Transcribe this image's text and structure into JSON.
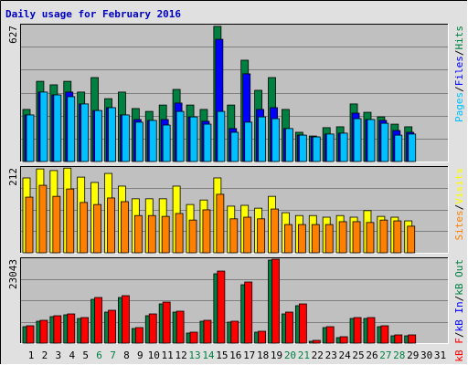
{
  "chart_data": {
    "type": "bar",
    "title": "Daily usage for February 2016",
    "categories": [
      "1",
      "2",
      "3",
      "4",
      "5",
      "6",
      "7",
      "8",
      "9",
      "10",
      "11",
      "12",
      "13",
      "14",
      "15",
      "16",
      "17",
      "18",
      "19",
      "20",
      "21",
      "22",
      "23",
      "24",
      "25",
      "26",
      "27",
      "28",
      "29",
      "30",
      "31"
    ],
    "category_colors": [
      "#000000",
      "#000000",
      "#000000",
      "#000000",
      "#000000",
      "#008040",
      "#008040",
      "#000000",
      "#000000",
      "#000000",
      "#000000",
      "#000000",
      "#008040",
      "#008040",
      "#000000",
      "#000000",
      "#000000",
      "#000000",
      "#000000",
      "#008040",
      "#008040",
      "#000000",
      "#000000",
      "#000000",
      "#000000",
      "#000000",
      "#008040",
      "#008040",
      "#000000",
      "#000000",
      "#000000"
    ],
    "legend_separator": "/",
    "panels": [
      {
        "ylim": [
          0,
          627
        ],
        "yticks": [
          627
        ],
        "series": [
          {
            "name": "Pages",
            "color": "#00c0ff",
            "values": [
              212,
              316,
              303,
              295,
              262,
              232,
              245,
              212,
              179,
              187,
              166,
              228,
              203,
              170,
              228,
              133,
              179,
              203,
              195,
              150,
              120,
              112,
              125,
              129,
              195,
              191,
              174,
              120,
              125,
              null,
              null
            ]
          },
          {
            "name": "Files",
            "color": "#0000ff",
            "values": [
              212,
              316,
              303,
              316,
              262,
              232,
              245,
              212,
              191,
              187,
              191,
              266,
              203,
              183,
              556,
              150,
              399,
              237,
              245,
              150,
              120,
              112,
              125,
              129,
              220,
              191,
              187,
              141,
              133,
              null,
              null
            ]
          },
          {
            "name": "Hits",
            "color": "#008040",
            "values": [
              237,
              365,
              349,
              365,
              316,
              382,
              286,
              316,
              241,
              228,
              257,
              328,
              257,
              237,
              615,
              257,
              461,
              324,
              382,
              237,
              133,
              116,
              154,
              158,
              262,
              224,
              203,
              170,
              158,
              null,
              null
            ]
          }
        ]
      },
      {
        "ylim": [
          0,
          212
        ],
        "yticks": [
          212
        ],
        "series": [
          {
            "name": "Sites",
            "color": "#ff8000",
            "values": [
              136,
              165,
              138,
              156,
              123,
              118,
              134,
              125,
              91,
              91,
              89,
              96,
              80,
              105,
              143,
              83,
              87,
              83,
              107,
              69,
              69,
              69,
              69,
              76,
              76,
              74,
              80,
              78,
              65,
              null,
              null
            ]
          },
          {
            "name": "Visits",
            "color": "#ffff00",
            "values": [
              183,
              205,
              201,
              207,
              185,
              172,
              194,
              163,
              132,
              132,
              132,
              163,
              118,
              129,
              183,
              114,
              116,
              109,
              138,
              98,
              91,
              91,
              87,
              91,
              87,
              103,
              89,
              87,
              78,
              null,
              null
            ]
          }
        ]
      },
      {
        "ylim": [
          0,
          23043
        ],
        "yticks": [
          23043
        ],
        "series": [
          {
            "name": "kB F",
            "color": "#ff0000",
            "values": [
              4655,
              6125,
              7350,
              7840,
              6860,
              12250,
              8820,
              12740,
              4165,
              7840,
              11025,
              8575,
              2940,
              6125,
              19355,
              5880,
              16415,
              3185,
              22540,
              8330,
              10535,
              735,
              4410,
              1715,
              6860,
              6860,
              4655,
              2205,
              2205,
              null,
              null
            ]
          },
          {
            "name": "kB In",
            "color": "#0000ff",
            "values": [
              0,
              0,
              0,
              0,
              0,
              0,
              0,
              0,
              0,
              0,
              0,
              0,
              0,
              0,
              0,
              0,
              0,
              0,
              0,
              0,
              0,
              0,
              0,
              0,
              0,
              0,
              0,
              0,
              0,
              null,
              null
            ]
          },
          {
            "name": "kB Out",
            "color": "#008040",
            "values": [
              4410,
              5880,
              7105,
              7595,
              6615,
              11760,
              8330,
              12250,
              3920,
              7350,
              10535,
              8330,
              2695,
              5880,
              18620,
              5635,
              15680,
              2940,
              22295,
              7840,
              10045,
              490,
              4165,
              1470,
              6615,
              6615,
              4410,
              1960,
              1960,
              null,
              null
            ]
          }
        ]
      }
    ]
  }
}
